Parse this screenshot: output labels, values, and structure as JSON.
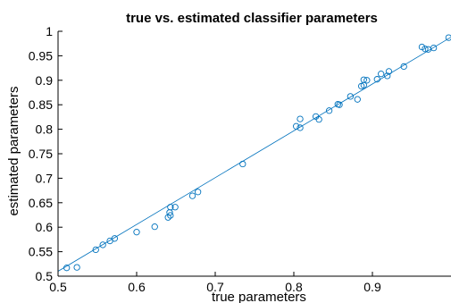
{
  "chart_data": {
    "type": "scatter",
    "title": "true vs. estimated classifier parameters",
    "xlabel": "true parameters",
    "ylabel": "estimated parameters",
    "xlim": [
      0.5,
      1.0
    ],
    "ylim": [
      0.5,
      1.0
    ],
    "grid": false,
    "legend": "none",
    "x_tick_labels": [
      "0.5",
      "0.6",
      "0.7",
      "0.8",
      "0.9"
    ],
    "y_tick_labels": [
      "0.5",
      "0.55",
      "0.6",
      "0.65",
      "0.7",
      "0.75",
      "0.8",
      "0.85",
      "0.9",
      "0.95",
      "1"
    ],
    "marker": "open-circle",
    "marker_color": "#0072bd",
    "fit_line": {
      "x": [
        0.5,
        1.0
      ],
      "y": [
        0.51,
        0.988
      ],
      "color": "#0072bd"
    },
    "points": [
      [
        0.511,
        0.517
      ],
      [
        0.524,
        0.518
      ],
      [
        0.548,
        0.554
      ],
      [
        0.557,
        0.564
      ],
      [
        0.566,
        0.572
      ],
      [
        0.572,
        0.577
      ],
      [
        0.6,
        0.59
      ],
      [
        0.623,
        0.601
      ],
      [
        0.64,
        0.62
      ],
      [
        0.642,
        0.63
      ],
      [
        0.643,
        0.624
      ],
      [
        0.643,
        0.641
      ],
      [
        0.649,
        0.641
      ],
      [
        0.671,
        0.664
      ],
      [
        0.678,
        0.672
      ],
      [
        0.735,
        0.729
      ],
      [
        0.803,
        0.806
      ],
      [
        0.808,
        0.803
      ],
      [
        0.808,
        0.821
      ],
      [
        0.828,
        0.826
      ],
      [
        0.832,
        0.82
      ],
      [
        0.845,
        0.838
      ],
      [
        0.856,
        0.851
      ],
      [
        0.858,
        0.85
      ],
      [
        0.872,
        0.867
      ],
      [
        0.881,
        0.861
      ],
      [
        0.886,
        0.888
      ],
      [
        0.889,
        0.89
      ],
      [
        0.889,
        0.901
      ],
      [
        0.893,
        0.9
      ],
      [
        0.906,
        0.902
      ],
      [
        0.911,
        0.913
      ],
      [
        0.919,
        0.909
      ],
      [
        0.921,
        0.918
      ],
      [
        0.94,
        0.928
      ],
      [
        0.963,
        0.968
      ],
      [
        0.967,
        0.964
      ],
      [
        0.971,
        0.963
      ],
      [
        0.978,
        0.966
      ],
      [
        0.997,
        0.987
      ]
    ]
  }
}
